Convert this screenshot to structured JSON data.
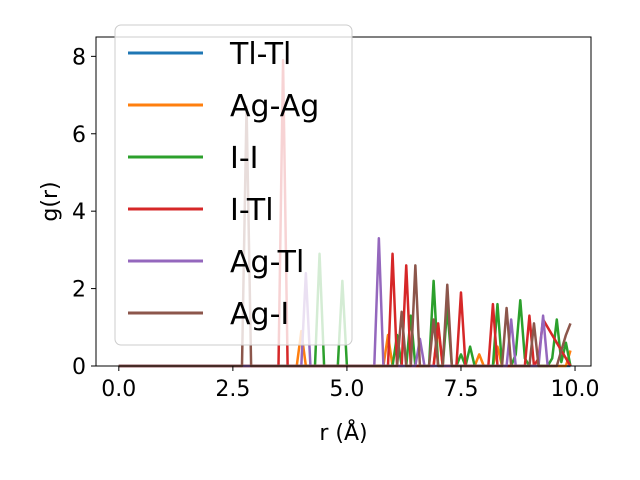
{
  "chart_data": {
    "type": "line",
    "xlabel": "r (Å)",
    "ylabel": "g(r)",
    "xlim": [
      -0.5,
      10.35
    ],
    "ylim": [
      0,
      8.5
    ],
    "x_ticks": [
      0.0,
      2.5,
      5.0,
      7.5,
      10.0
    ],
    "x_tick_labels": [
      "0.0",
      "2.5",
      "5.0",
      "7.5",
      "10.0"
    ],
    "y_ticks": [
      0,
      2,
      4,
      6,
      8
    ],
    "y_tick_labels": [
      "0",
      "2",
      "4",
      "6",
      "8"
    ],
    "grid": false,
    "legend_position": "top-left",
    "series": [
      {
        "name": "Tl-Tl",
        "color": "#1f77b4",
        "x": [
          0,
          9.9
        ],
        "y": [
          0,
          0
        ]
      },
      {
        "name": "Ag-Ag",
        "color": "#ff7f0e",
        "x": [
          0,
          3.9,
          4.0,
          4.1,
          5.8,
          5.9,
          6.0,
          6.9,
          7.0,
          7.1,
          7.8,
          7.9,
          8.0,
          8.2,
          8.3,
          8.4,
          9.8,
          9.9
        ],
        "y": [
          0,
          0,
          0.9,
          0,
          0,
          0.8,
          0,
          0,
          1.0,
          0,
          0,
          0.3,
          0,
          0,
          0.5,
          0,
          0,
          0.4
        ]
      },
      {
        "name": "I-I",
        "color": "#2ca02c",
        "x": [
          0,
          4.3,
          4.4,
          4.5,
          4.8,
          4.9,
          5.0,
          6.0,
          6.1,
          6.2,
          6.3,
          6.4,
          6.5,
          6.8,
          6.9,
          7.0,
          7.1,
          7.2,
          7.3,
          7.4,
          7.5,
          7.6,
          7.7,
          7.8,
          8.2,
          8.3,
          8.4,
          8.6,
          8.7,
          8.8,
          8.9,
          9.0,
          9.4,
          9.5,
          9.6,
          9.7,
          9.8,
          9.9
        ],
        "y": [
          0,
          0,
          2.9,
          0,
          0,
          2.2,
          0,
          0,
          0.8,
          0,
          0,
          1.3,
          0,
          0,
          2.2,
          0,
          0,
          1.5,
          0,
          0,
          0.3,
          0,
          0.5,
          0,
          0,
          1.6,
          0,
          0,
          0.3,
          1.7,
          0.2,
          0,
          0,
          0.2,
          1.2,
          0.1,
          0.6,
          0
        ]
      },
      {
        "name": "I-Tl",
        "color": "#d62728",
        "x": [
          0,
          3.5,
          3.6,
          3.7,
          5.9,
          6.0,
          6.1,
          6.2,
          6.3,
          6.4,
          6.9,
          7.0,
          7.1,
          7.4,
          7.5,
          7.6,
          8.1,
          8.2,
          8.3,
          8.9,
          9.0,
          9.1,
          9.2,
          9.3,
          9.9
        ],
        "y": [
          0,
          0,
          7.9,
          0,
          0,
          2.9,
          0,
          0,
          2.6,
          0,
          0,
          1.1,
          0,
          0,
          1.9,
          0,
          0,
          1.6,
          0,
          0,
          1.3,
          0,
          0.2,
          1.2,
          0
        ]
      },
      {
        "name": "Ag-Tl",
        "color": "#9467bd",
        "x": [
          0,
          4.0,
          4.1,
          4.2,
          5.6,
          5.7,
          5.8,
          6.5,
          6.6,
          6.7,
          8.5,
          8.6,
          8.7,
          9.2,
          9.3,
          9.4
        ],
        "y": [
          0,
          0,
          2.4,
          0,
          0,
          3.3,
          0,
          0,
          0.7,
          0,
          0,
          1.2,
          0,
          0,
          1.3,
          0
        ]
      },
      {
        "name": "Ag-I",
        "color": "#8c564b",
        "x": [
          0,
          2.7,
          2.8,
          2.9,
          6.1,
          6.2,
          6.3,
          6.4,
          6.5,
          6.6,
          6.8,
          6.9,
          7.0,
          7.1,
          7.2,
          7.3,
          8.4,
          8.5,
          8.6,
          9.0,
          9.1,
          9.2,
          9.6,
          9.7,
          9.8,
          9.9
        ],
        "y": [
          0,
          0,
          6.7,
          0,
          0,
          1.4,
          0,
          0,
          2.6,
          0,
          0,
          1.2,
          0,
          0,
          2.1,
          0,
          0,
          1.5,
          0,
          0,
          1.1,
          0,
          0,
          0.4,
          0.8,
          1.1
        ]
      }
    ]
  }
}
